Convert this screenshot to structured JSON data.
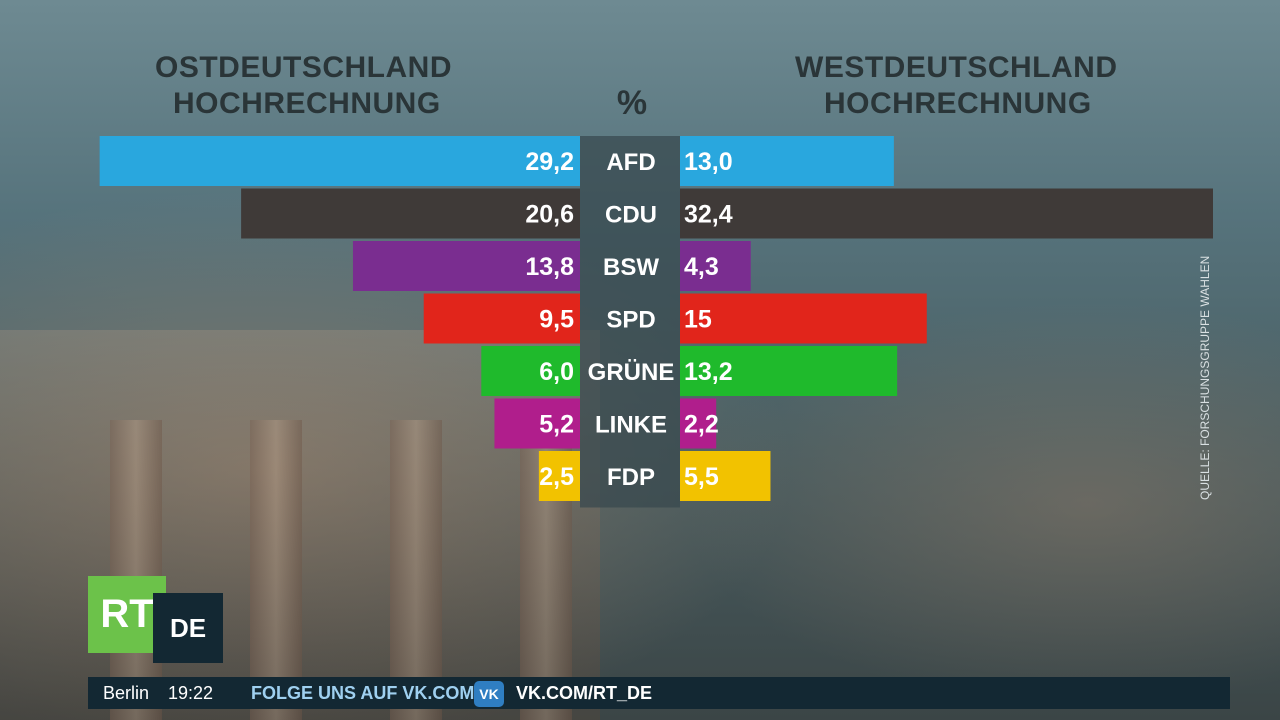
{
  "headers": {
    "left_line1": "OSTDEUTSCHLAND",
    "left_line2": "HOCHRECHNUNG",
    "center": "%",
    "right_line1": "WESTDEUTSCHLAND",
    "right_line2": "HOCHRECHNUNG"
  },
  "chart_data": {
    "type": "bar",
    "categories": [
      "AFD",
      "CDU",
      "BSW",
      "SPD",
      "GRÜNE",
      "LINKE",
      "FDP"
    ],
    "series": [
      {
        "name": "OSTDEUTSCHLAND",
        "values": [
          29.2,
          20.6,
          13.8,
          9.5,
          6.0,
          5.2,
          2.5
        ],
        "labels": [
          "29,2",
          "20,6",
          "13,8",
          "9,5",
          "6,0",
          "5,2",
          "2,5"
        ]
      },
      {
        "name": "WESTDEUTSCHLAND",
        "values": [
          13.0,
          32.4,
          4.3,
          15,
          13.2,
          2.2,
          5.5
        ],
        "labels": [
          "13,0",
          "32,4",
          "4,3",
          "15",
          "13,2",
          "2,2",
          "5,5"
        ]
      }
    ],
    "colors": [
      "#29a7de",
      "#3f3a38",
      "#7a2d90",
      "#e1251b",
      "#1fba2c",
      "#b01e8c",
      "#f2c200"
    ],
    "xlim": [
      0,
      32.4
    ]
  },
  "source": "QUELLE: FORSCHUNGSGRUPPE WAHLEN",
  "logo": {
    "rt": "RT",
    "de": "DE"
  },
  "ticker": {
    "city": "Berlin",
    "time": "19:22",
    "follow": "FOLGE UNS AUF VK.COM",
    "vk_icon": "vk-icon",
    "vk_label": "VK",
    "url": "VK.COM/RT_DE"
  }
}
